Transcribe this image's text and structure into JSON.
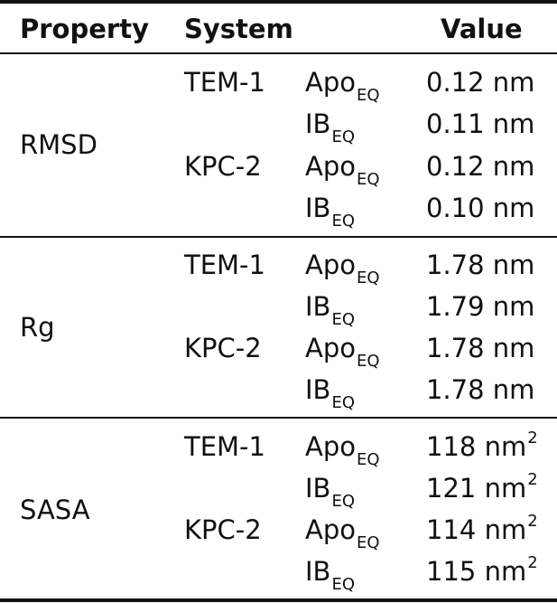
{
  "header": {
    "property": "Property",
    "system": "System",
    "value": "Value"
  },
  "groups": [
    {
      "property": "RMSD",
      "rows": [
        {
          "system": "TEM-1",
          "state": "Apo",
          "state_sub": "EQ",
          "value": "0.12 nm"
        },
        {
          "system": "",
          "state": "IB",
          "state_sub": "EQ",
          "value": "0.11 nm"
        },
        {
          "system": "KPC-2",
          "state": "Apo",
          "state_sub": "EQ",
          "value": "0.12 nm"
        },
        {
          "system": "",
          "state": "IB",
          "state_sub": "EQ",
          "value": "0.10 nm"
        }
      ]
    },
    {
      "property": "Rg",
      "rows": [
        {
          "system": "TEM-1",
          "state": "Apo",
          "state_sub": "EQ",
          "value": "1.78 nm"
        },
        {
          "system": "",
          "state": "IB",
          "state_sub": "EQ",
          "value": "1.79 nm"
        },
        {
          "system": "KPC-2",
          "state": "Apo",
          "state_sub": "EQ",
          "value": "1.78 nm"
        },
        {
          "system": "",
          "state": "IB",
          "state_sub": "EQ",
          "value": "1.78 nm"
        }
      ]
    },
    {
      "property": "SASA",
      "rows": [
        {
          "system": "TEM-1",
          "state": "Apo",
          "state_sub": "EQ",
          "value": "118 nm",
          "value_sup": "2"
        },
        {
          "system": "",
          "state": "IB",
          "state_sub": "EQ",
          "value": "121 nm",
          "value_sup": "2"
        },
        {
          "system": "KPC-2",
          "state": "Apo",
          "state_sub": "EQ",
          "value": "114 nm",
          "value_sup": "2"
        },
        {
          "system": "",
          "state": "IB",
          "state_sub": "EQ",
          "value": "115 nm",
          "value_sup": "2"
        }
      ]
    }
  ]
}
